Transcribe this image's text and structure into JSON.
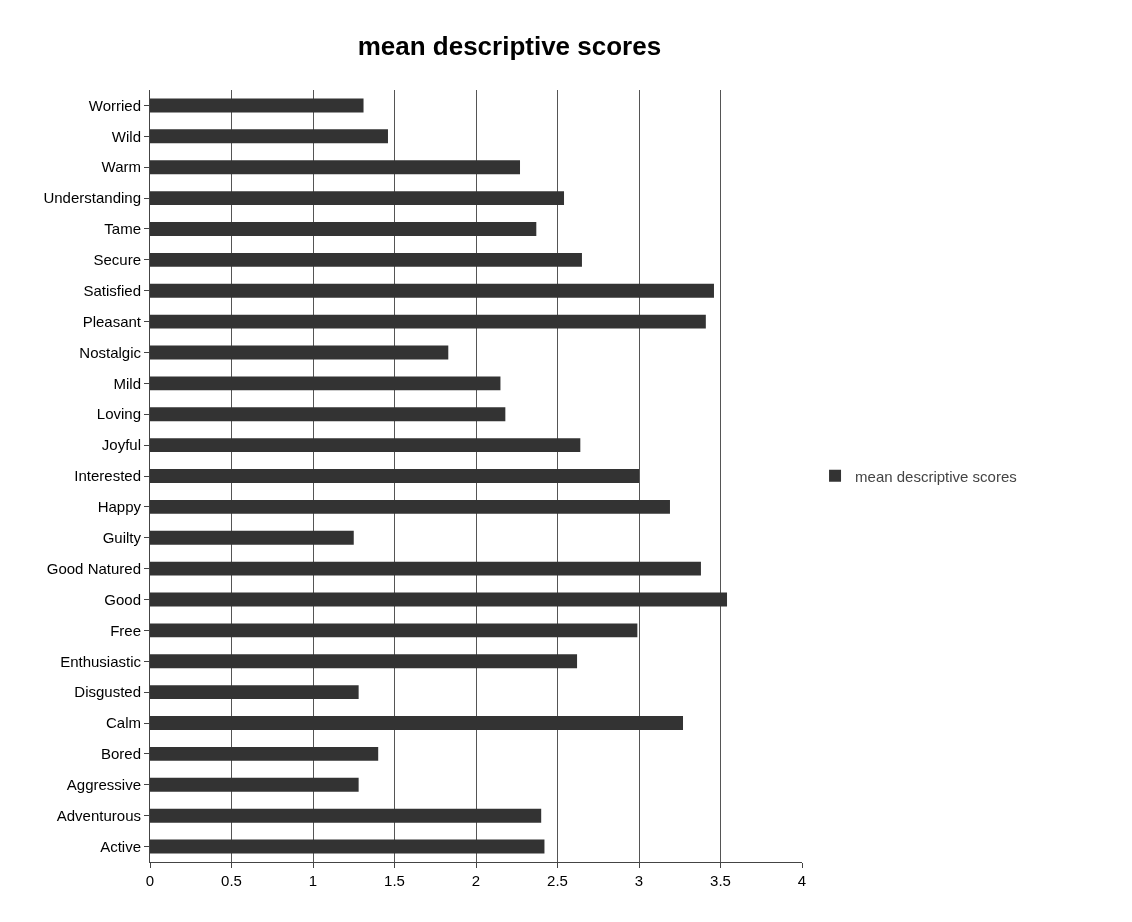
{
  "chart_data": {
    "type": "bar",
    "orientation": "horizontal",
    "title": "mean descriptive scores",
    "categories": [
      "Worried",
      "Wild",
      "Warm",
      "Understanding",
      "Tame",
      "Secure",
      "Satisfied",
      "Pleasant",
      "Nostalgic",
      "Mild",
      "Loving",
      "Joyful",
      "Interested",
      "Happy",
      "Guilty",
      "Good Natured",
      "Good",
      "Free",
      "Enthusiastic",
      "Disgusted",
      "Calm",
      "Bored",
      "Aggressive",
      "Adventurous",
      "Active"
    ],
    "series": [
      {
        "name": "mean descriptive scores",
        "color": "#333333",
        "values": [
          1.31,
          1.46,
          2.27,
          2.54,
          2.37,
          2.65,
          3.46,
          3.41,
          1.83,
          2.15,
          2.18,
          2.64,
          3.0,
          3.19,
          1.25,
          3.38,
          3.54,
          2.99,
          2.62,
          1.28,
          3.27,
          1.4,
          1.28,
          2.4,
          2.42
        ]
      }
    ],
    "xlim": [
      0,
      4
    ],
    "xticks": [
      0,
      0.5,
      1,
      1.5,
      2,
      2.5,
      3,
      3.5,
      4
    ],
    "grid": "x",
    "legend": "right"
  }
}
